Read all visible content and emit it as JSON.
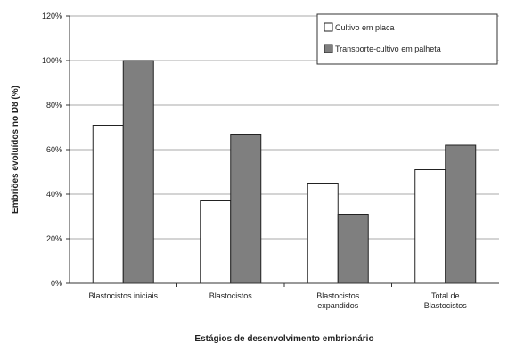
{
  "chart_data": {
    "type": "bar",
    "title": "",
    "xlabel": "Estágios de desenvolvimento embrionário",
    "ylabel": "Embriões evoluídos no D8 (%)",
    "ylim": [
      0,
      120
    ],
    "yticks": [
      0,
      20,
      40,
      60,
      80,
      100,
      120
    ],
    "ytick_suffix": "%",
    "grid": true,
    "legend_position": "top-right",
    "categories": [
      [
        "Blastocistos iniciais"
      ],
      [
        "Blastocistos"
      ],
      [
        "Blastocistos",
        "expandidos"
      ],
      [
        "Total de",
        "Blastocistos"
      ]
    ],
    "series": [
      {
        "name": "Cultivo em placa",
        "color": "#ffffff",
        "values": [
          71,
          37,
          45,
          51
        ]
      },
      {
        "name": "Transporte-cultivo em palheta",
        "color": "#7f7f7f",
        "values": [
          100,
          67,
          31,
          62
        ]
      }
    ]
  }
}
